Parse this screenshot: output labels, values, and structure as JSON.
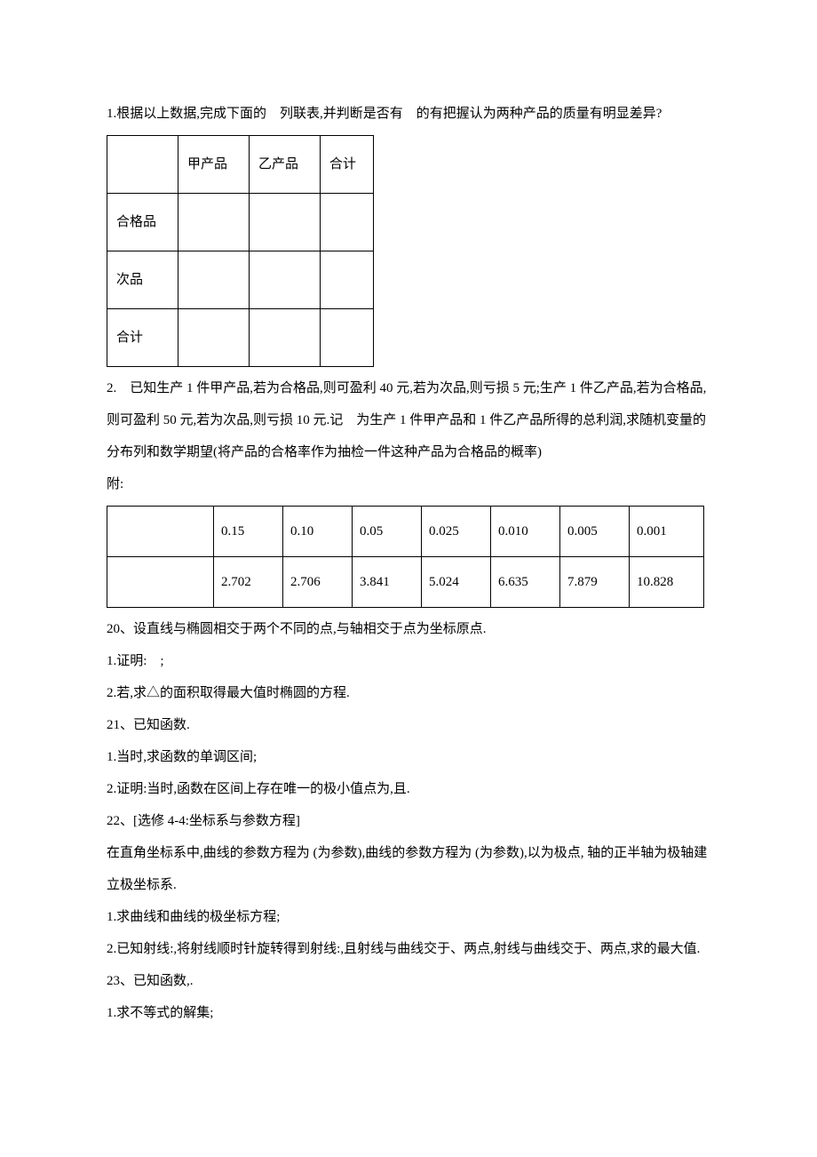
{
  "p1": "1.根据以上数据,完成下面的　列联表,并判断是否有　的有把握认为两种产品的质量有明显差异?",
  "table1": {
    "cols": [
      "",
      "甲产品",
      "乙产品",
      "合计"
    ],
    "rows": [
      "合格品",
      "次品",
      "合计"
    ]
  },
  "p2": "2.　已知生产 1 件甲产品,若为合格品,则可盈利 40 元,若为次品,则亏损 5 元;生产 1 件乙产品,若为合格品,则可盈利 50 元,若为次品,则亏损 10 元.记　为生产 1 件甲产品和 1 件乙产品所得的总利润,求随机变量的分布列和数学期望(将产品的合格率作为抽检一件这种产品为合格品的概率)",
  "p3": "附:",
  "table2": {
    "row1": [
      "",
      "0.15",
      "0.10",
      "0.05",
      "0.025",
      "0.010",
      "0.005",
      "0.001"
    ],
    "row2": [
      "",
      "2.702",
      "2.706",
      "3.841",
      "5.024",
      "6.635",
      "7.879",
      "10.828"
    ]
  },
  "q20a": "20、设直线与椭圆相交于两个不同的点,与轴相交于点为坐标原点.",
  "q20b": "1.证明:　;",
  "q20c": "2.若,求△的面积取得最大值时椭圆的方程.",
  "q21a": "21、已知函数.",
  "q21b": "1.当时,求函数的单调区间;",
  "q21c": "2.证明:当时,函数在区间上存在唯一的极小值点为,且.",
  "q22a": "22、[选修 4-4:坐标系与参数方程]",
  "q22b": "在直角坐标系中,曲线的参数方程为 (为参数),曲线的参数方程为 (为参数),以为极点, 轴的正半轴为极轴建立极坐标系.",
  "q22c": "1.求曲线和曲线的极坐标方程;",
  "q22d": "2.已知射线:,将射线顺时针旋转得到射线:,且射线与曲线交于、两点,射线与曲线交于、两点,求的最大值.",
  "q23a": "23、已知函数,.",
  "q23b": "1.求不等式的解集;"
}
